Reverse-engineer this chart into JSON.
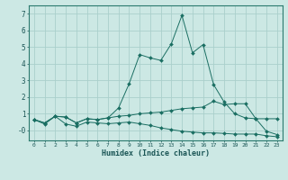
{
  "xlabel": "Humidex (Indice chaleur)",
  "background_color": "#cce8e4",
  "grid_color": "#aacfcb",
  "line_color": "#1a6e62",
  "xlim": [
    -0.5,
    23.5
  ],
  "ylim": [
    -0.6,
    7.5
  ],
  "xticks": [
    0,
    1,
    2,
    3,
    4,
    5,
    6,
    7,
    8,
    9,
    10,
    11,
    12,
    13,
    14,
    15,
    16,
    17,
    18,
    19,
    20,
    21,
    22,
    23
  ],
  "yticks": [
    0,
    1,
    2,
    3,
    4,
    5,
    6,
    7
  ],
  "ytick_labels": [
    "-0",
    "1",
    "2",
    "3",
    "4",
    "5",
    "6",
    "7"
  ],
  "series": [
    {
      "x": [
        0,
        1,
        2,
        3,
        4,
        5,
        6,
        7,
        8,
        9,
        10,
        11,
        12,
        13,
        14,
        15,
        16,
        17,
        18,
        19,
        20,
        21,
        22,
        23
      ],
      "y": [
        0.65,
        0.45,
        0.85,
        0.8,
        0.45,
        0.7,
        0.65,
        0.75,
        1.35,
        2.8,
        4.55,
        4.35,
        4.2,
        5.2,
        6.9,
        4.65,
        5.15,
        2.75,
        1.7,
        1.0,
        0.75,
        0.7,
        -0.05,
        -0.25
      ]
    },
    {
      "x": [
        0,
        1,
        2,
        3,
        4,
        5,
        6,
        7,
        8,
        9,
        10,
        11,
        12,
        13,
        14,
        15,
        16,
        17,
        18,
        19,
        20,
        21,
        22,
        23
      ],
      "y": [
        0.65,
        0.45,
        0.85,
        0.8,
        0.45,
        0.7,
        0.65,
        0.75,
        0.85,
        0.9,
        1.0,
        1.05,
        1.1,
        1.2,
        1.3,
        1.35,
        1.4,
        1.75,
        1.55,
        1.6,
        1.6,
        0.7,
        0.7,
        0.7
      ]
    },
    {
      "x": [
        0,
        1,
        2,
        3,
        4,
        5,
        6,
        7,
        8,
        9,
        10,
        11,
        12,
        13,
        14,
        15,
        16,
        17,
        18,
        19,
        20,
        21,
        22,
        23
      ],
      "y": [
        0.65,
        0.38,
        0.85,
        0.38,
        0.25,
        0.5,
        0.45,
        0.4,
        0.45,
        0.5,
        0.4,
        0.3,
        0.15,
        0.05,
        -0.05,
        -0.1,
        -0.15,
        -0.15,
        -0.18,
        -0.22,
        -0.22,
        -0.22,
        -0.32,
        -0.38
      ]
    }
  ]
}
